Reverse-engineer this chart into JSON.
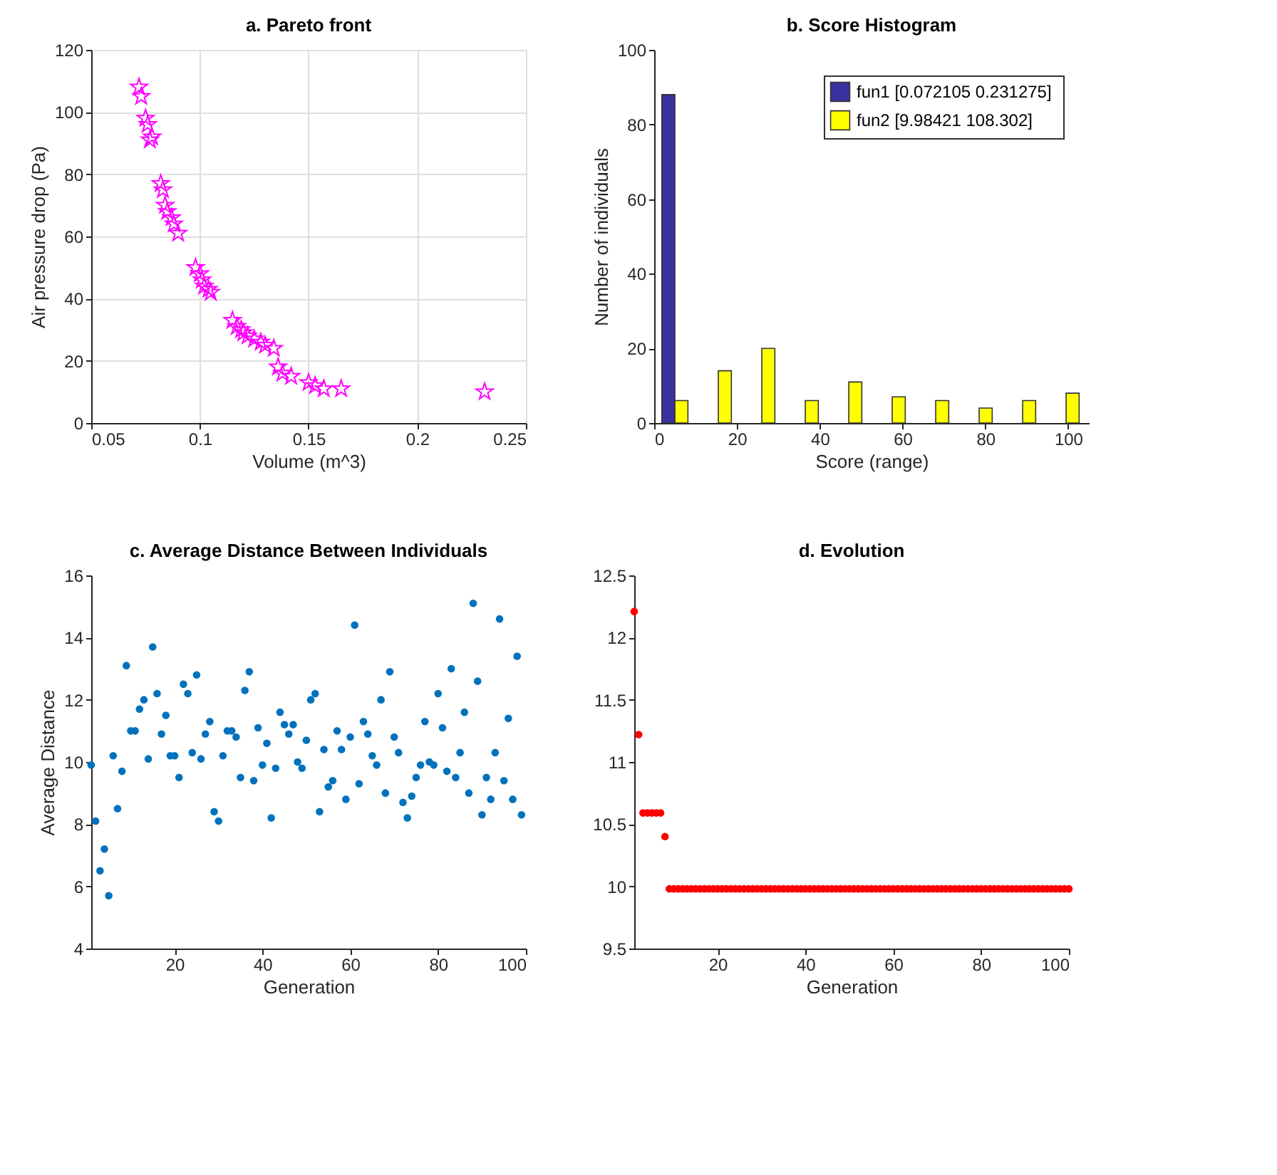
{
  "chart_data": [
    {
      "type": "scatter",
      "title": "a. Pareto front",
      "xlabel": "Volume (m^3)",
      "ylabel": "Air pressure drop (Pa)",
      "xlim": [
        0.05,
        0.25
      ],
      "xticks": [
        0.05,
        0.1,
        0.15,
        0.2,
        0.25
      ],
      "ylim": [
        0,
        120
      ],
      "yticks": [
        0,
        20,
        40,
        60,
        80,
        100,
        120
      ],
      "grid": true,
      "marker": "star",
      "x": [
        0.072,
        0.073,
        0.075,
        0.076,
        0.077,
        0.078,
        0.082,
        0.083,
        0.084,
        0.085,
        0.087,
        0.088,
        0.09,
        0.098,
        0.1,
        0.101,
        0.102,
        0.104,
        0.105,
        0.115,
        0.117,
        0.119,
        0.12,
        0.122,
        0.125,
        0.128,
        0.13,
        0.134,
        0.136,
        0.138,
        0.142,
        0.15,
        0.153,
        0.157,
        0.165,
        0.231
      ],
      "series": [
        {
          "color": "#ff00ff",
          "values": [
            108,
            105,
            98,
            96,
            91,
            92,
            77,
            75,
            70,
            68,
            66,
            64,
            61,
            50,
            48,
            46,
            44,
            43,
            42,
            33,
            31,
            30,
            29,
            28,
            27,
            26,
            25,
            24,
            18,
            16,
            15,
            13,
            12,
            11,
            11,
            10
          ]
        }
      ]
    },
    {
      "type": "bar",
      "title": "b. Score Histogram",
      "xlabel": "Score (range)",
      "ylabel": "Number of individuals",
      "xlim": [
        0,
        105
      ],
      "xticks": [
        0,
        20,
        40,
        60,
        80,
        100
      ],
      "ylim": [
        0,
        100
      ],
      "yticks": [
        0,
        20,
        40,
        60,
        80,
        100
      ],
      "legend": "top right",
      "x": [
        5,
        15.5,
        26,
        36.5,
        47,
        57.5,
        68,
        78.5,
        89,
        99.5
      ],
      "series": [
        {
          "name": "fun1 [0.072105  0.231275]",
          "color": "#3a30a0",
          "values": [
            88,
            0,
            0,
            0,
            0,
            0,
            0,
            0,
            0,
            0
          ]
        },
        {
          "name": "fun2 [9.98421  108.302]",
          "color": "#ffff00",
          "values": [
            6,
            14,
            20,
            6,
            11,
            7,
            6,
            4,
            6,
            8
          ]
        }
      ]
    },
    {
      "type": "scatter",
      "title": "c. Average Distance Between Individuals",
      "xlabel": "Generation",
      "ylabel": "Average Distance",
      "xlim": [
        1,
        100
      ],
      "xticks": [
        20,
        40,
        60,
        80,
        100
      ],
      "ylim": [
        4,
        16
      ],
      "yticks": [
        4,
        6,
        8,
        10,
        12,
        14,
        16
      ],
      "marker": "circle",
      "x": [
        1,
        2,
        3,
        4,
        5,
        6,
        7,
        8,
        9,
        10,
        11,
        12,
        13,
        14,
        15,
        16,
        17,
        18,
        19,
        20,
        21,
        22,
        23,
        24,
        25,
        26,
        27,
        28,
        29,
        30,
        31,
        32,
        33,
        34,
        35,
        36,
        37,
        38,
        39,
        40,
        41,
        42,
        43,
        44,
        45,
        46,
        47,
        48,
        49,
        50,
        51,
        52,
        53,
        54,
        55,
        56,
        57,
        58,
        59,
        60,
        61,
        62,
        63,
        64,
        65,
        66,
        67,
        68,
        69,
        70,
        71,
        72,
        73,
        74,
        75,
        76,
        77,
        78,
        79,
        80,
        81,
        82,
        83,
        84,
        85,
        86,
        87,
        88,
        89,
        90,
        91,
        92,
        93,
        94,
        95,
        96,
        97,
        98,
        99
      ],
      "series": [
        {
          "color": "#0072bd",
          "values": [
            9.9,
            8.1,
            6.5,
            7.2,
            5.7,
            10.2,
            8.5,
            9.7,
            13.1,
            11,
            11,
            11.7,
            12,
            10.1,
            13.7,
            12.2,
            10.9,
            11.5,
            10.2,
            10.2,
            9.5,
            12.5,
            12.2,
            10.3,
            12.8,
            10.1,
            10.9,
            11.3,
            8.4,
            8.1,
            10.2,
            11,
            11,
            10.8,
            9.5,
            12.3,
            12.9,
            9.4,
            11.1,
            9.9,
            10.6,
            8.2,
            9.8,
            11.6,
            11.2,
            10.9,
            11.2,
            10,
            9.8,
            10.7,
            12,
            12.2,
            8.4,
            10.4,
            9.2,
            9.4,
            11,
            10.4,
            8.8,
            10.8,
            14.4,
            9.3,
            11.3,
            10.9,
            10.2,
            9.9,
            12,
            9,
            12.9,
            10.8,
            10.3,
            8.7,
            8.2,
            8.9,
            9.5,
            9.9,
            11.3,
            10,
            9.9,
            12.2,
            11.1,
            9.7,
            13,
            9.5,
            10.3,
            11.6,
            9,
            15.1,
            12.6,
            8.3,
            9.5,
            8.8,
            10.3,
            14.6,
            9.4,
            11.4,
            8.8,
            13.4,
            8.3
          ]
        }
      ]
    },
    {
      "type": "scatter",
      "title": "d. Evolution",
      "xlabel": "Generation",
      "xlim": [
        1,
        100
      ],
      "xticks": [
        20,
        40,
        60,
        80,
        100
      ],
      "ylim": [
        9.5,
        12.5
      ],
      "yticks": [
        9.5,
        10,
        10.5,
        11,
        11.5,
        12,
        12.5
      ],
      "marker": "circle",
      "x": [
        1,
        2,
        3,
        4,
        5,
        6,
        7,
        8,
        9,
        10,
        11,
        12,
        13,
        14,
        15,
        16,
        17,
        18,
        19,
        20,
        21,
        22,
        23,
        24,
        25,
        26,
        27,
        28,
        29,
        30,
        31,
        32,
        33,
        34,
        35,
        36,
        37,
        38,
        39,
        40,
        41,
        42,
        43,
        44,
        45,
        46,
        47,
        48,
        49,
        50,
        51,
        52,
        53,
        54,
        55,
        56,
        57,
        58,
        59,
        60,
        61,
        62,
        63,
        64,
        65,
        66,
        67,
        68,
        69,
        70,
        71,
        72,
        73,
        74,
        75,
        76,
        77,
        78,
        79,
        80,
        81,
        82,
        83,
        84,
        85,
        86,
        87,
        88,
        89,
        90,
        91,
        92,
        93,
        94,
        95,
        96,
        97,
        98,
        99,
        100
      ],
      "series": [
        {
          "color": "#ff0000",
          "values": [
            12.21,
            11.22,
            10.59,
            10.59,
            10.59,
            10.59,
            10.59,
            10.4,
            9.98,
            9.98,
            9.98,
            9.98,
            9.98,
            9.98,
            9.98,
            9.98,
            9.98,
            9.98,
            9.98,
            9.98,
            9.98,
            9.98,
            9.98,
            9.98,
            9.98,
            9.98,
            9.98,
            9.98,
            9.98,
            9.98,
            9.98,
            9.98,
            9.98,
            9.98,
            9.98,
            9.98,
            9.98,
            9.98,
            9.98,
            9.98,
            9.98,
            9.98,
            9.98,
            9.98,
            9.98,
            9.98,
            9.98,
            9.98,
            9.98,
            9.98,
            9.98,
            9.98,
            9.98,
            9.98,
            9.98,
            9.98,
            9.98,
            9.98,
            9.98,
            9.98,
            9.98,
            9.98,
            9.98,
            9.98,
            9.98,
            9.98,
            9.98,
            9.98,
            9.98,
            9.98,
            9.98,
            9.98,
            9.98,
            9.98,
            9.98,
            9.98,
            9.98,
            9.98,
            9.98,
            9.98,
            9.98,
            9.98,
            9.98,
            9.98,
            9.98,
            9.98,
            9.98,
            9.98,
            9.98,
            9.98,
            9.98,
            9.98,
            9.98,
            9.98,
            9.98,
            9.98,
            9.98,
            9.98,
            9.98,
            9.98
          ]
        }
      ]
    }
  ]
}
